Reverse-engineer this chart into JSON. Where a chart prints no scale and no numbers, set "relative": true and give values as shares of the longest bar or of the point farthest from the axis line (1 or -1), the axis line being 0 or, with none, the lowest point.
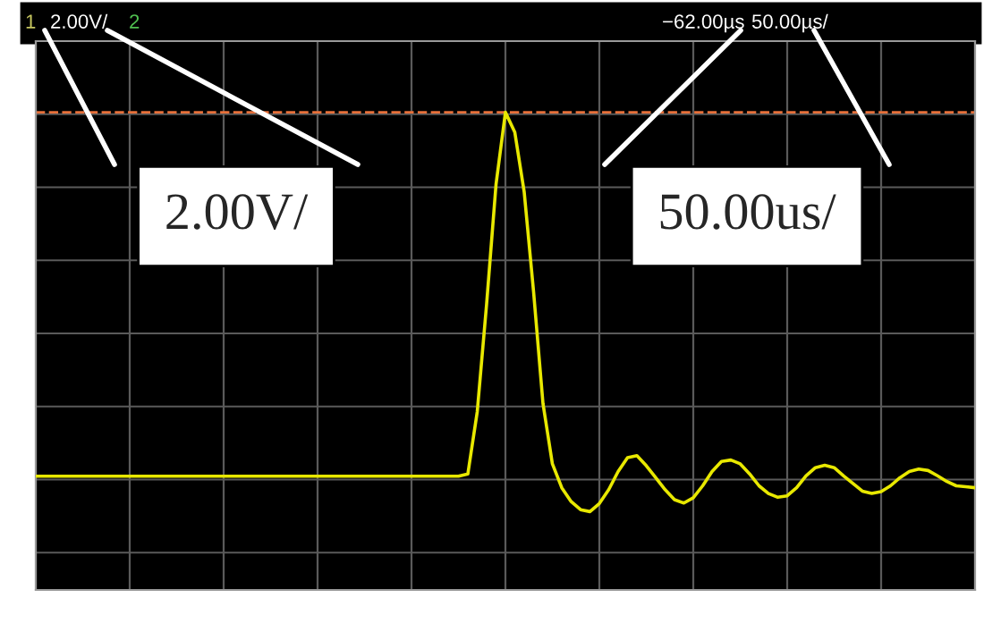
{
  "chart_data": {
    "type": "line",
    "relative": true,
    "tick_labels": false,
    "grid": true,
    "legend": false,
    "marker": "none",
    "line_style": "solid",
    "categories": [
      null,
      null,
      null,
      null,
      null,
      null,
      null,
      null,
      null,
      null,
      null,
      null,
      null,
      null,
      null,
      null,
      null,
      null,
      null,
      null,
      null,
      null,
      null,
      null,
      null,
      null,
      null,
      null,
      null,
      null,
      null,
      null,
      null,
      null,
      null,
      null,
      null,
      null,
      null,
      null,
      null,
      null,
      null,
      null,
      null,
      null,
      null,
      null,
      null,
      null,
      null,
      null,
      null,
      null,
      null,
      null,
      null,
      null,
      null,
      null,
      null,
      null,
      null,
      null,
      null,
      null,
      null,
      null,
      null,
      null,
      null,
      null,
      null,
      null,
      null,
      null,
      null,
      null,
      null,
      null,
      null,
      null,
      null,
      null,
      null,
      null,
      null,
      null,
      null,
      null,
      null,
      null,
      null,
      null,
      null,
      null,
      null,
      null,
      null,
      null,
      null
    ],
    "series": [
      {
        "color": "#e8e800",
        "values": [
          0.238,
          0.238,
          0.238,
          0.238,
          0.238,
          0.238,
          0.238,
          0.238,
          0.238,
          0.238,
          0.238,
          0.238,
          0.238,
          0.238,
          0.238,
          0.238,
          0.238,
          0.238,
          0.238,
          0.238,
          0.238,
          0.238,
          0.238,
          0.238,
          0.238,
          0.238,
          0.238,
          0.238,
          0.238,
          0.238,
          0.238,
          0.238,
          0.238,
          0.238,
          0.238,
          0.238,
          0.238,
          0.238,
          0.238,
          0.238,
          0.238,
          0.238,
          0.238,
          0.238,
          0.238,
          0.238,
          0.243,
          0.373,
          0.599,
          0.849,
          1.0,
          0.958,
          0.833,
          0.624,
          0.39,
          0.264,
          0.214,
          0.185,
          0.168,
          0.164,
          0.181,
          0.21,
          0.248,
          0.277,
          0.281,
          0.26,
          0.235,
          0.21,
          0.189,
          0.182,
          0.193,
          0.218,
          0.248,
          0.269,
          0.272,
          0.264,
          0.243,
          0.218,
          0.202,
          0.194,
          0.197,
          0.214,
          0.239,
          0.256,
          0.261,
          0.256,
          0.239,
          0.223,
          0.207,
          0.202,
          0.206,
          0.218,
          0.235,
          0.248,
          0.253,
          0.25,
          0.239,
          0.227,
          0.218,
          0.216,
          0.214
        ]
      }
    ],
    "ref_lines": [
      {
        "axis": "y",
        "value": 1,
        "color": "#e8703a",
        "line_style": "dashed"
      }
    ],
    "annotations": [
      "1",
      "2.00V/",
      "2",
      "−62.00µs",
      "50.00µs/",
      "2.00V/",
      "50.00us/"
    ]
  }
}
